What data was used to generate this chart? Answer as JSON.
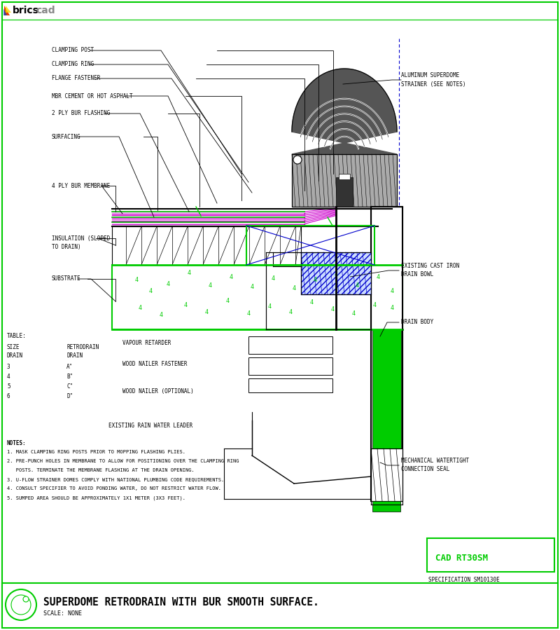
{
  "bg_color": "#ffffff",
  "border_color": "#00cc00",
  "line_color": "#000000",
  "green_color": "#00cc00",
  "blue_color": "#0000cc",
  "magenta_color": "#cc00cc",
  "olive_color": "#808000",
  "title": "SUPERDOME RETRODRAIN WITH BUR SMOOTH SURFACE.",
  "scale_text": "SCALE: NONE",
  "cad_number": "CAD RT30SM",
  "spec_text": "SPECIFICATION SM10130E",
  "notes": [
    "1. MASK CLAMPING RING POSTS PRIOR TO MOPPING FLASHING PLIES.",
    "2. PRE-PUNCH HOLES IN MEMBRANE TO ALLOW FOR POSITIONING OVER THE CLAMPING RING",
    "   POSTS. TERMINATE THE MEMBRANE FLASHING AT THE DRAIN OPENING.",
    "3. U-FLOW STRAINER DOMES COMPLY WITH NATIONAL PLUMBING CODE REQUIREMENTS.",
    "4. CONSULT SPECIFIER TO AVOID PONDING WATER, DO NOT RESTRICT WATER FLOW.",
    "5. SUMPED AREA SHOULD BE APPROXIMATELY 1X1 METER (3X3 FEET)."
  ]
}
